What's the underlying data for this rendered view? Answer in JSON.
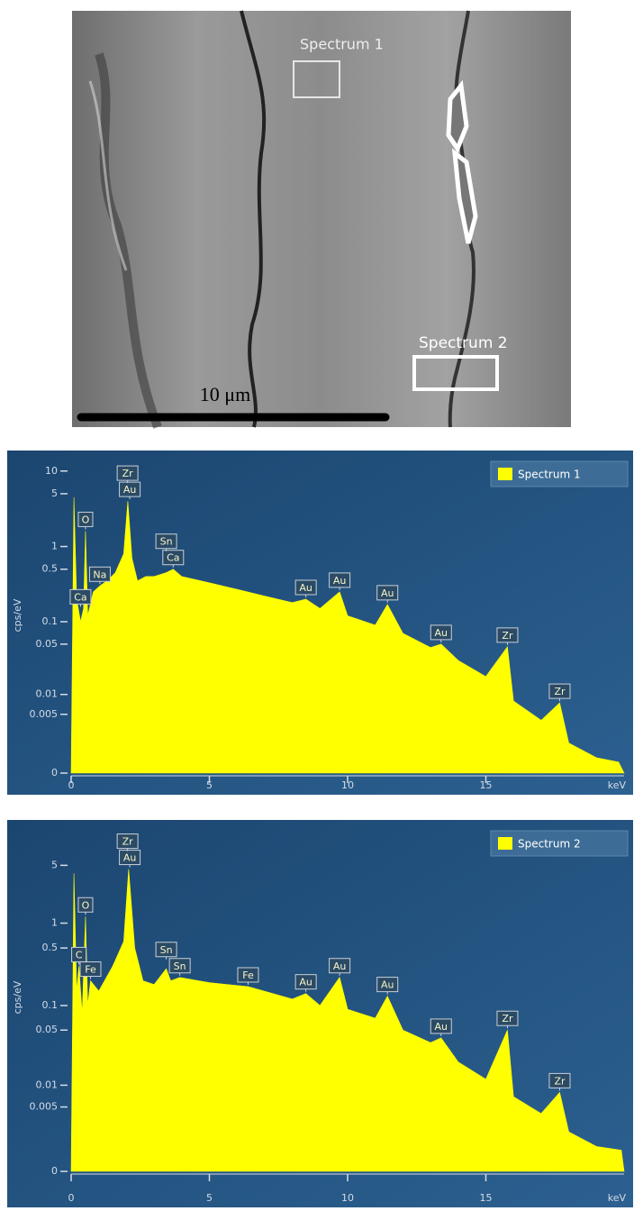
{
  "image": {
    "labels": [
      "Spectrum 1",
      "Spectrum 2"
    ],
    "scale_bar": "10 μm"
  },
  "chart_data": [
    {
      "type": "area",
      "x_label": "keV",
      "y_label": "cps/eV",
      "yscale": "symlog",
      "linthresh": 0.001,
      "xlim": [
        0,
        20
      ],
      "ylim": [
        0,
        15
      ],
      "xticks": [
        0,
        5,
        10,
        15
      ],
      "yticks": [
        0,
        0.005,
        0.01,
        0.05,
        0.1,
        0.5,
        1,
        5,
        10
      ],
      "legend": "top-right",
      "x": [
        0,
        0.1,
        0.2,
        0.34,
        0.45,
        0.52,
        0.6,
        0.8,
        1.04,
        1.3,
        1.6,
        1.9,
        2.05,
        2.2,
        2.4,
        2.7,
        3.0,
        3.44,
        3.69,
        4.0,
        5,
        6,
        7,
        8,
        8.49,
        9,
        9.71,
        10,
        11,
        11.44,
        12,
        13,
        13.38,
        14,
        15,
        15.78,
        16,
        17,
        17.67,
        18,
        19,
        19.8,
        20
      ],
      "series": [
        {
          "name": "Spectrum 1",
          "color": "#ffff00",
          "values": [
            0,
            4.5,
            0.2,
            0.1,
            0.15,
            1.6,
            0.12,
            0.25,
            0.3,
            0.35,
            0.45,
            0.8,
            4,
            0.7,
            0.35,
            0.4,
            0.4,
            0.45,
            0.5,
            0.4,
            0.33,
            0.27,
            0.22,
            0.18,
            0.2,
            0.15,
            0.25,
            0.12,
            0.09,
            0.17,
            0.07,
            0.045,
            0.05,
            0.03,
            0.018,
            0.046,
            0.008,
            0.004,
            0.0075,
            0.0015,
            0.0006,
            0.0004,
            0
          ]
        }
      ],
      "peak_labels": [
        {
          "label": "Zr",
          "x": 2.04
        },
        {
          "label": "Au",
          "x": 2.12
        },
        {
          "label": "O",
          "x": 0.52
        },
        {
          "label": "Na",
          "x": 1.04
        },
        {
          "label": "Ca",
          "x": 0.34
        },
        {
          "label": "Sn",
          "x": 3.44
        },
        {
          "label": "Ca",
          "x": 3.69
        },
        {
          "label": "Au",
          "x": 8.49
        },
        {
          "label": "Au",
          "x": 9.71
        },
        {
          "label": "Au",
          "x": 11.44
        },
        {
          "label": "Au",
          "x": 13.38
        },
        {
          "label": "Zr",
          "x": 15.78
        },
        {
          "label": "Zr",
          "x": 17.67
        }
      ]
    },
    {
      "type": "area",
      "x_label": "keV",
      "y_label": "cps/eV",
      "yscale": "symlog",
      "linthresh": 0.001,
      "xlim": [
        0,
        20
      ],
      "ylim": [
        0,
        16
      ],
      "xticks": [
        0,
        5,
        10,
        15
      ],
      "yticks": [
        0,
        0.005,
        0.01,
        0.05,
        0.1,
        0.5,
        1,
        5
      ],
      "legend": "top-right",
      "x": [
        0,
        0.1,
        0.2,
        0.28,
        0.4,
        0.52,
        0.6,
        0.7,
        1.0,
        1.5,
        1.9,
        2.08,
        2.3,
        2.6,
        3.0,
        3.44,
        3.6,
        3.93,
        5,
        6.4,
        8,
        8.49,
        9,
        9.71,
        10,
        11,
        11.44,
        12,
        13,
        13.38,
        14,
        15,
        15.78,
        16,
        17,
        17.67,
        18,
        19,
        19.9,
        20
      ],
      "series": [
        {
          "name": "Spectrum 2",
          "color": "#ffff00",
          "values": [
            0,
            4,
            0.15,
            0.3,
            0.08,
            1.2,
            0.1,
            0.2,
            0.15,
            0.3,
            0.6,
            4.5,
            0.5,
            0.2,
            0.18,
            0.28,
            0.2,
            0.22,
            0.19,
            0.17,
            0.12,
            0.14,
            0.1,
            0.22,
            0.09,
            0.07,
            0.13,
            0.05,
            0.035,
            0.04,
            0.02,
            0.012,
            0.05,
            0.007,
            0.004,
            0.008,
            0.002,
            0.001,
            0.0008,
            0
          ]
        }
      ],
      "peak_labels": [
        {
          "label": "Zr",
          "x": 2.04
        },
        {
          "label": "Au",
          "x": 2.12
        },
        {
          "label": "O",
          "x": 0.52
        },
        {
          "label": "C",
          "x": 0.28
        },
        {
          "label": "Fe",
          "x": 0.7
        },
        {
          "label": "Sn",
          "x": 3.44
        },
        {
          "label": "Sn",
          "x": 3.93
        },
        {
          "label": "Fe",
          "x": 6.4
        },
        {
          "label": "Au",
          "x": 8.49
        },
        {
          "label": "Au",
          "x": 9.71
        },
        {
          "label": "Au",
          "x": 11.44
        },
        {
          "label": "Au",
          "x": 13.38
        },
        {
          "label": "Zr",
          "x": 15.78
        },
        {
          "label": "Zr",
          "x": 17.67
        }
      ]
    }
  ]
}
